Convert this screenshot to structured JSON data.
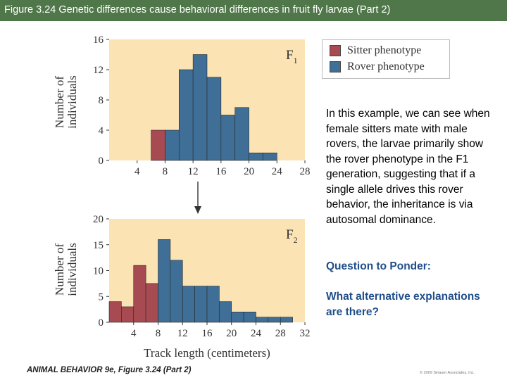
{
  "header": {
    "title": "Figure 3.24 Genetic differences cause behavioral differences in fruit fly larvae (Part 2)"
  },
  "legend": {
    "items": [
      {
        "label": "Sitter phenotype",
        "color": "#a84a52"
      },
      {
        "label": "Rover phenotype",
        "color": "#3f6e96"
      }
    ]
  },
  "text": {
    "body": "In this example, we can see when female sitters mate with male rovers, the larvae primarily show the rover phenotype in the F1 generation, suggesting that if a single allele drives this rover behavior, the inheritance is via autosomal dominance.",
    "question": "Question to Ponder:",
    "alternative": "What alternative explanations are there?"
  },
  "footer": {
    "credit": "ANIMAL BEHAVIOR 9e, Figure 3.24 (Part 2)",
    "copyright": "© 2009 Sinauer Associates, Inc."
  },
  "colors": {
    "header_bg": "#50774a",
    "plot_bg": "#fbe3b4",
    "sitter": "#a84a52",
    "rover": "#3f6e96"
  },
  "chart_data": [
    {
      "type": "bar",
      "panel_label": "F",
      "panel_sub": "1",
      "ylabel": "Number of individuals",
      "xlabel": "",
      "xlim": [
        0,
        28
      ],
      "ylim": [
        0,
        16
      ],
      "yticks": [
        "0",
        "4",
        "8",
        "12",
        "16"
      ],
      "xticks": [
        "4",
        "8",
        "12",
        "16",
        "20",
        "24",
        "28"
      ],
      "bin_width": 2,
      "series": [
        {
          "name": "Sitter phenotype",
          "bins": [
            6
          ],
          "values": [
            4
          ]
        },
        {
          "name": "Rover phenotype",
          "bins": [
            8,
            10,
            12,
            14,
            16,
            18,
            20,
            22
          ],
          "values": [
            4,
            12,
            14,
            11,
            6,
            7,
            1,
            1
          ]
        }
      ]
    },
    {
      "type": "bar",
      "panel_label": "F",
      "panel_sub": "2",
      "ylabel": "Number of individuals",
      "xlabel": "Track length (centimeters)",
      "xlim": [
        0,
        32
      ],
      "ylim": [
        0,
        20
      ],
      "yticks": [
        "0",
        "5",
        "10",
        "15",
        "20"
      ],
      "xticks": [
        "4",
        "8",
        "12",
        "16",
        "20",
        "24",
        "28",
        "32"
      ],
      "bin_width": 2,
      "series": [
        {
          "name": "Sitter phenotype",
          "bins": [
            0,
            2,
            4,
            6
          ],
          "values": [
            4,
            3,
            11,
            7.5
          ]
        },
        {
          "name": "Rover phenotype",
          "bins": [
            8,
            10,
            12,
            14,
            16,
            18,
            20,
            22,
            24,
            26,
            28
          ],
          "values": [
            16,
            12,
            7,
            7,
            7,
            4,
            2,
            2,
            1,
            1,
            1
          ]
        }
      ]
    }
  ]
}
